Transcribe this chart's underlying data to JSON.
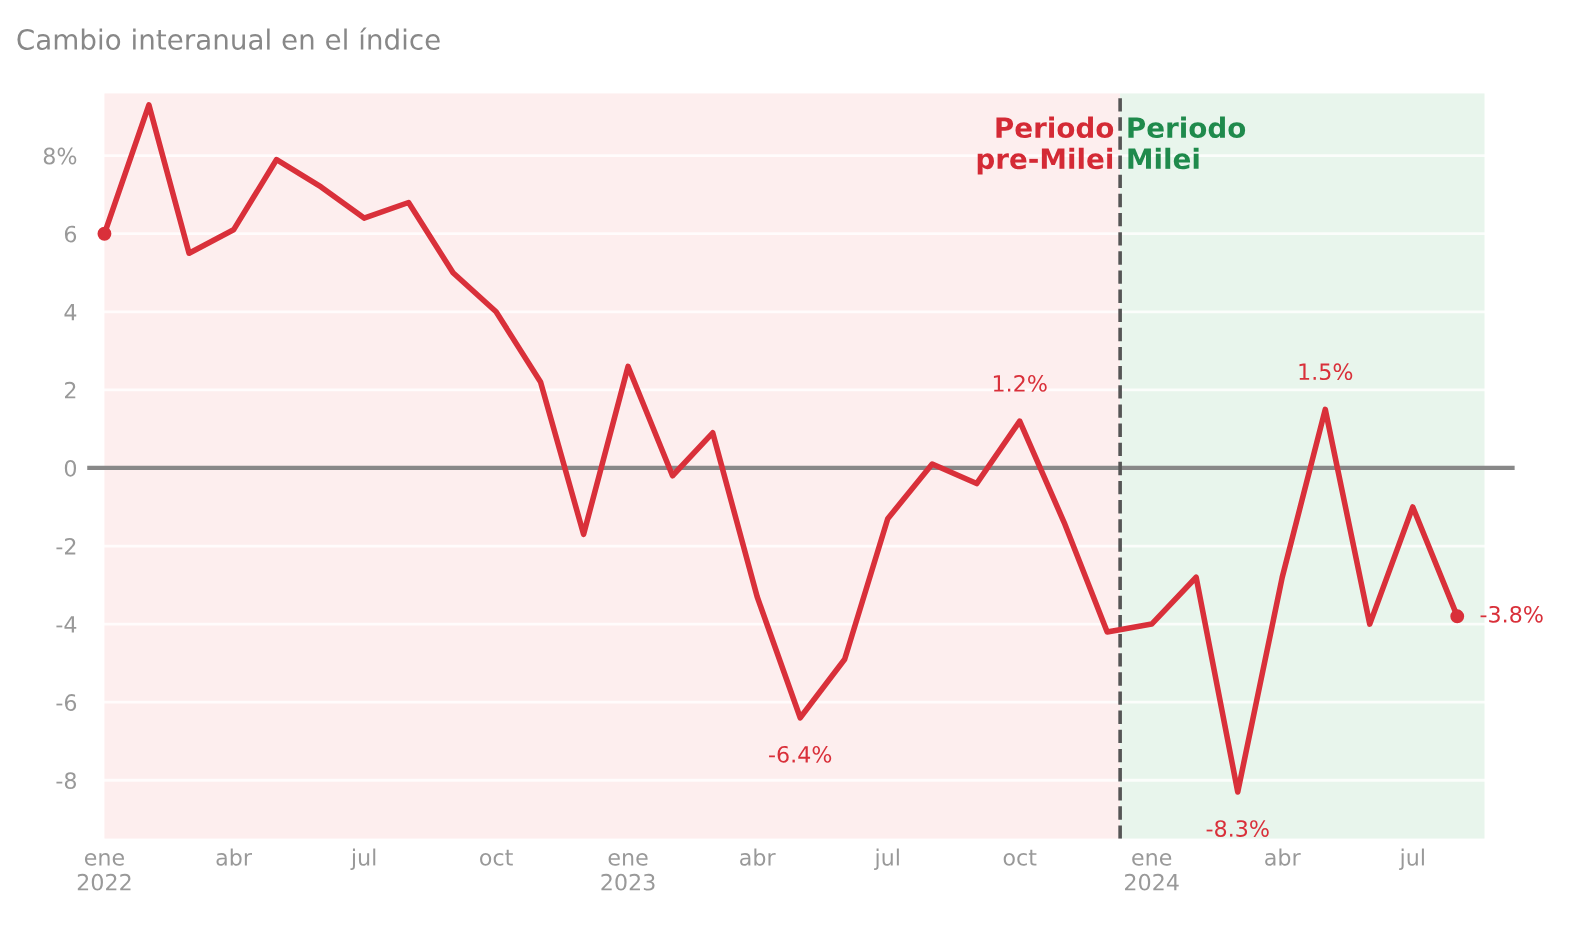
{
  "chart_data": {
    "type": "line",
    "title": "Cambio interanual en el índice",
    "x": [
      "2022-01",
      "2022-02",
      "2022-03",
      "2022-04",
      "2022-05",
      "2022-06",
      "2022-07",
      "2022-08",
      "2022-09",
      "2022-10",
      "2022-11",
      "2022-12",
      "2023-01",
      "2023-02",
      "2023-03",
      "2023-04",
      "2023-05",
      "2023-06",
      "2023-07",
      "2023-08",
      "2023-09",
      "2023-10",
      "2023-11",
      "2023-12",
      "2024-01",
      "2024-02",
      "2024-03",
      "2024-04",
      "2024-05",
      "2024-06",
      "2024-07",
      "2024-08"
    ],
    "series": [
      {
        "color": "#d9303a",
        "values": [
          6.0,
          9.3,
          5.5,
          6.1,
          7.9,
          7.2,
          6.4,
          6.8,
          5.0,
          4.0,
          2.2,
          -1.7,
          2.6,
          -0.2,
          0.9,
          -3.3,
          -6.4,
          -4.9,
          -1.3,
          0.1,
          -0.4,
          1.2,
          -1.4,
          -4.2,
          -4.0,
          -2.8,
          -8.3,
          -2.8,
          1.5,
          -4.0,
          -1.0,
          -3.8
        ]
      }
    ],
    "xlim": [
      "2021-12-20",
      "2024-09-10"
    ],
    "ylim": [
      -9.5,
      9.6
    ],
    "xticks": [
      {
        "value": "2022-01",
        "label": "ene\n2022"
      },
      {
        "value": "2022-04",
        "label": "abr"
      },
      {
        "value": "2022-07",
        "label": "jul"
      },
      {
        "value": "2022-10",
        "label": "oct"
      },
      {
        "value": "2023-01",
        "label": "ene\n2023"
      },
      {
        "value": "2023-04",
        "label": "abr"
      },
      {
        "value": "2023-07",
        "label": "jul"
      },
      {
        "value": "2023-10",
        "label": "oct"
      },
      {
        "value": "2024-01",
        "label": "ene\n2024"
      },
      {
        "value": "2024-04",
        "label": "abr"
      },
      {
        "value": "2024-07",
        "label": "jul"
      }
    ],
    "yticks": [
      {
        "value": -8,
        "label": "-8"
      },
      {
        "value": -6,
        "label": "-6"
      },
      {
        "value": -4,
        "label": "-4"
      },
      {
        "value": -2,
        "label": "-2"
      },
      0,
      2,
      4,
      6,
      {
        "value": 8,
        "label": "8%"
      }
    ],
    "grid": "y",
    "marker": "none",
    "line_style": "solid",
    "ref_lines": [
      {
        "axis": "y",
        "value": 0,
        "color": "#888888",
        "line_style": "solid"
      },
      {
        "axis": "x",
        "value": "2023-12-10",
        "color": "#555555",
        "line_style": "dashed"
      }
    ],
    "bands": [
      {
        "axis": "x",
        "from": "2022-01-01",
        "to": "2023-12-10",
        "label": "Periodo\npre-Milei",
        "color": "#fdeeee"
      },
      {
        "axis": "x",
        "from": "2023-12-10",
        "to": "2024-08-20",
        "label": "Periodo\nMilei",
        "color": "#e8f5ec"
      }
    ],
    "annotations": [
      {
        "text": "1.2%",
        "x": "2023-10",
        "y": 1.2
      },
      {
        "text": "-6.4%",
        "x": "2023-05",
        "y": -6.4
      },
      {
        "text": "-8.3%",
        "x": "2024-03",
        "y": -8.3
      },
      {
        "text": "1.5%",
        "x": "2024-05",
        "y": 1.5
      },
      {
        "text": "-3.8%",
        "x": "2024-08",
        "y": -3.8
      }
    ]
  }
}
